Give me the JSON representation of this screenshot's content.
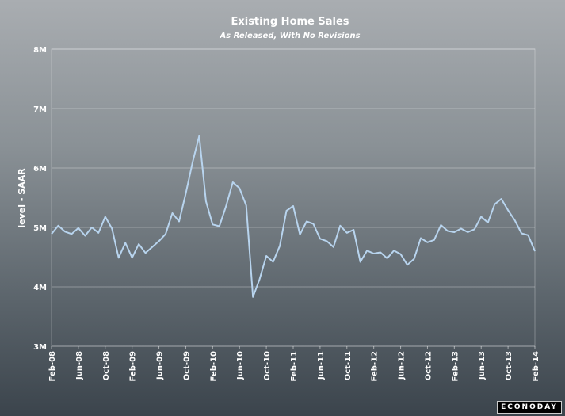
{
  "chart_data": {
    "type": "line",
    "title": "Existing Home Sales",
    "subtitle": "As Released, With No Revisions",
    "ylabel": "level - SAAR",
    "xlabel": "",
    "ylim": [
      3000000,
      8000000
    ],
    "yticks": [
      {
        "value": 3000000,
        "label": "3M"
      },
      {
        "value": 4000000,
        "label": "4M"
      },
      {
        "value": 5000000,
        "label": "5M"
      },
      {
        "value": 6000000,
        "label": "6M"
      },
      {
        "value": 7000000,
        "label": "7M"
      },
      {
        "value": 8000000,
        "label": "8M"
      }
    ],
    "xticks": [
      {
        "index": 0,
        "label": "Feb-08"
      },
      {
        "index": 4,
        "label": "Jun-08"
      },
      {
        "index": 8,
        "label": "Oct-08"
      },
      {
        "index": 12,
        "label": "Feb-09"
      },
      {
        "index": 16,
        "label": "Jun-09"
      },
      {
        "index": 20,
        "label": "Oct-09"
      },
      {
        "index": 24,
        "label": "Feb-10"
      },
      {
        "index": 28,
        "label": "Jun-10"
      },
      {
        "index": 32,
        "label": "Oct-10"
      },
      {
        "index": 36,
        "label": "Feb-11"
      },
      {
        "index": 40,
        "label": "Jun-11"
      },
      {
        "index": 44,
        "label": "Oct-11"
      },
      {
        "index": 48,
        "label": "Feb-12"
      },
      {
        "index": 52,
        "label": "Jun-12"
      },
      {
        "index": 56,
        "label": "Oct-12"
      },
      {
        "index": 60,
        "label": "Feb-13"
      },
      {
        "index": 64,
        "label": "Jun-13"
      },
      {
        "index": 68,
        "label": "Oct-13"
      },
      {
        "index": 72,
        "label": "Feb-14"
      }
    ],
    "grid": true,
    "line_color": "#b8d4ee",
    "series": [
      {
        "values": [
          4890000,
          5030000,
          4930000,
          4890000,
          4990000,
          4860000,
          5000000,
          4910000,
          5180000,
          4980000,
          4490000,
          4740000,
          4490000,
          4720000,
          4570000,
          4670000,
          4770000,
          4890000,
          5240000,
          5100000,
          5570000,
          6090000,
          6540000,
          5440000,
          5050000,
          5020000,
          5360000,
          5760000,
          5660000,
          5370000,
          3830000,
          4130000,
          4520000,
          4420000,
          4690000,
          5280000,
          5360000,
          4880000,
          5100000,
          5060000,
          4810000,
          4770000,
          4670000,
          5030000,
          4910000,
          4960000,
          4420000,
          4610000,
          4560000,
          4580000,
          4480000,
          4610000,
          4550000,
          4370000,
          4470000,
          4820000,
          4750000,
          4790000,
          5040000,
          4940000,
          4920000,
          4980000,
          4920000,
          4970000,
          5180000,
          5080000,
          5390000,
          5480000,
          5290000,
          5120000,
          4900000,
          4870000,
          4600000
        ]
      }
    ]
  },
  "logo_text": "ECONODAY"
}
